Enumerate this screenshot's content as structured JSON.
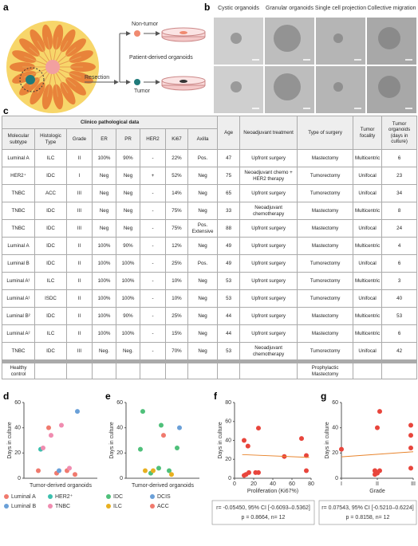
{
  "panel_a": {
    "label": "a",
    "non_tumor": "Non-tumor",
    "patient_derived": "Patient-derived organoids",
    "resection": "Resection",
    "tumor": "Tumor"
  },
  "panel_b": {
    "label": "b",
    "columns": [
      "Cystic organoids",
      "Granular organoids",
      "Single cell projection",
      "Collective migration"
    ]
  },
  "panel_c": {
    "label": "c",
    "group_header": "Clinico pathological data",
    "columns": [
      "Molecular subtype",
      "Histologic Type",
      "Grade",
      "ER",
      "PR",
      "HER2",
      "Ki67",
      "Axilla",
      "Age",
      "Neoadjuvant treatment",
      "Type of surgery",
      "Tumor focality",
      "Tumor organoids (days in culture)"
    ],
    "rows": [
      [
        "Luminal A",
        "ILC",
        "II",
        "100%",
        "90%",
        "-",
        "22%",
        "Pos.",
        "47",
        "Upfront surgery",
        "Mastectomy",
        "Multicentric",
        "6"
      ],
      [
        "HER2⁺",
        "IDC",
        "I",
        "Neg",
        "Neg",
        "+",
        "52%",
        "Neg",
        "75",
        "Neoadjuvant chemo + HER2 therapy",
        "Tumorectomy",
        "Unifocal",
        "23"
      ],
      [
        "TNBC",
        "ACC",
        "III",
        "Neg",
        "Neg",
        "-",
        "14%",
        "Neg",
        "65",
        "Upfront surgery",
        "Tumorectomy",
        "Unifocal",
        "34"
      ],
      [
        "TNBC",
        "IDC",
        "III",
        "Neg",
        "Neg",
        "-",
        "75%",
        "Neg",
        "33",
        "Neoadjuvant chemotherapy",
        "Mastectomy",
        "Multicentric",
        "8"
      ],
      [
        "TNBC",
        "IDC",
        "III",
        "Neg",
        "Neg",
        "-",
        "75%",
        "Pos. Extensive",
        "88",
        "Upfront surgery",
        "Mastectomy",
        "Unifocal",
        "24"
      ],
      [
        "Luminal A",
        "IDC",
        "II",
        "100%",
        "90%",
        "-",
        "12%",
        "Neg",
        "49",
        "Upfront surgery",
        "Mastectomy",
        "Multicentric",
        "4"
      ],
      [
        "Luminal B",
        "IDC",
        "II",
        "100%",
        "100%",
        "-",
        "25%",
        "Pos.",
        "49",
        "Upfront surgery",
        "Tumorectomy",
        "Unifocal",
        "6"
      ],
      [
        "Luminal A¹",
        "ILC",
        "II",
        "100%",
        "100%",
        "-",
        "10%",
        "Neg",
        "53",
        "Upfront surgery",
        "Tumorectomy",
        "Multicentric",
        "3"
      ],
      [
        "Luminal A¹",
        "ISDC",
        "II",
        "100%",
        "100%",
        "-",
        "10%",
        "Neg",
        "53",
        "Upfront surgery",
        "Tumorectomy",
        "Unifocal",
        "40"
      ],
      [
        "Luminal B²",
        "IDC",
        "II",
        "100%",
        "90%",
        "-",
        "25%",
        "Neg",
        "44",
        "Upfront surgery",
        "Mastectomy",
        "Multicentric",
        "53"
      ],
      [
        "Luminal A²",
        "ILC",
        "II",
        "100%",
        "100%",
        "-",
        "15%",
        "Neg",
        "44",
        "Upfront surgery",
        "Mastectomy",
        "Multicentric",
        "6"
      ],
      [
        "TNBC",
        "IDC",
        "III",
        "Neg.",
        "Neg.",
        "-",
        "70%",
        "Neg",
        "53",
        "Neoadjuvant chemotherapy",
        "Tumorectomy",
        "Unifocal",
        "42"
      ]
    ],
    "healthy_row": [
      "Healthy control",
      "Prophylactic Mastectomy"
    ]
  },
  "chart_data": [
    {
      "type": "strip",
      "label": "d",
      "ylabel": "Days in culture",
      "xlabel": "Tumor-derived organoids",
      "ylim": [
        0,
        60
      ],
      "yticks": [
        0,
        20,
        40,
        60
      ],
      "series": [
        {
          "name": "Luminal A",
          "color": "#f07a6e",
          "values": [
            6,
            4,
            3,
            40,
            6
          ]
        },
        {
          "name": "HER2⁺",
          "color": "#3cbfae",
          "values": [
            23
          ]
        },
        {
          "name": "Luminal B",
          "color": "#6aa0d8",
          "values": [
            6,
            53
          ]
        },
        {
          "name": "TNBC",
          "color": "#f08cb0",
          "values": [
            34,
            8,
            24,
            42
          ]
        }
      ]
    },
    {
      "type": "strip",
      "label": "e",
      "ylabel": "Days in culture",
      "xlabel": "Tumor-derived organoids",
      "ylim": [
        0,
        60
      ],
      "yticks": [
        0,
        20,
        40,
        60
      ],
      "series": [
        {
          "name": "IDC",
          "color": "#4fc07a",
          "values": [
            23,
            8,
            24,
            4,
            6,
            53,
            42
          ]
        },
        {
          "name": "DCIS",
          "color": "#6aa0d8",
          "values": [
            40
          ]
        },
        {
          "name": "ILC",
          "color": "#e8b020",
          "values": [
            6,
            3,
            6
          ]
        },
        {
          "name": "ACC",
          "color": "#f07a6e",
          "values": [
            34
          ]
        }
      ]
    },
    {
      "type": "scatter",
      "label": "f",
      "ylabel": "Days in culture",
      "xlabel": "Proliferation (Ki67%)",
      "color": "#e8453c",
      "x": [
        22,
        52,
        14,
        75,
        75,
        12,
        25,
        10,
        10,
        25,
        15,
        70
      ],
      "y": [
        6,
        23,
        34,
        8,
        24,
        4,
        6,
        3,
        40,
        53,
        6,
        42
      ],
      "xlim": [
        0,
        80
      ],
      "xticks": [
        0,
        20,
        40,
        60,
        80
      ],
      "ylim": [
        0,
        80
      ],
      "yticks": [
        0,
        20,
        40,
        60,
        80
      ],
      "trend": {
        "color": "#e8842c",
        "x": [
          8,
          78
        ],
        "y": [
          25,
          22
        ]
      },
      "stats": [
        "r= -0.05450, 95% CI [-0.6093–0.5362]",
        "p = 0.8664, n= 12"
      ]
    },
    {
      "type": "grade",
      "label": "g",
      "ylabel": "Days in culture",
      "xlabel": "Grade",
      "color": "#e8453c",
      "categories": [
        "I",
        "II",
        "III"
      ],
      "groups": [
        [
          23
        ],
        [
          6,
          4,
          6,
          3,
          40,
          53,
          6
        ],
        [
          34,
          8,
          24,
          42
        ]
      ],
      "ylim": [
        0,
        60
      ],
      "yticks": [
        0,
        20,
        40,
        60
      ],
      "trend": {
        "color": "#e8842c",
        "y": [
          17,
          21
        ]
      },
      "stats": [
        "r= 0.07543, 95% CI [-0.5210–0.6224]",
        "p = 0.8158, n= 12"
      ]
    }
  ]
}
